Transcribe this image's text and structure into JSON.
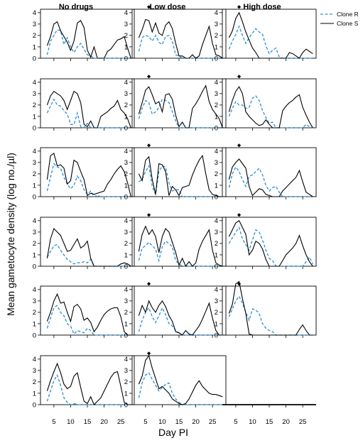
{
  "chart_data": {
    "type": "line",
    "ylabel": "Mean gametocyte density (log no./µl)",
    "xlabel": "Day PI",
    "columns": [
      "No drugs",
      "Low dose",
      "High dose"
    ],
    "xlim": [
      1,
      29
    ],
    "ylim": [
      0,
      4.3
    ],
    "x_ticks": [
      5,
      10,
      15,
      20,
      25
    ],
    "y_ticks": [
      0,
      1,
      2,
      3,
      4
    ],
    "legend": {
      "position": "top-right",
      "entries": [
        {
          "name": "Clone R",
          "color": "#2a8fd6",
          "dash": "dashed"
        },
        {
          "name": "Clone S",
          "color": "#000000",
          "dash": "solid"
        }
      ]
    },
    "marker": {
      "symbol": "diamond",
      "x": 6,
      "y": 4.5
    },
    "x": [
      3,
      4,
      5,
      6,
      7,
      8,
      9,
      10,
      11,
      12,
      13,
      14,
      15,
      16,
      17,
      18,
      19,
      20,
      21,
      22,
      23,
      24,
      25,
      26,
      27,
      28
    ],
    "panels": [
      {
        "row": 1,
        "col": "No drugs",
        "marker": false,
        "R": [
          0.3,
          1.5,
          2.0,
          2.5,
          2.4,
          1.2,
          1.8,
          1.0,
          0.5,
          1.0,
          1.3,
          0.8,
          0.3,
          0.2,
          0,
          0,
          0,
          0,
          0,
          0,
          0,
          0,
          0,
          0,
          0,
          0
        ],
        "S": [
          1.1,
          1.9,
          3.0,
          3.2,
          2.4,
          1.9,
          1.4,
          0.7,
          1.5,
          3.1,
          3.3,
          2.7,
          0.7,
          0.1,
          1.0,
          0,
          0,
          0,
          0.6,
          0.8,
          1.2,
          1.6,
          1.7,
          1.9,
          0.9,
          0
        ]
      },
      {
        "row": 1,
        "col": "Low dose",
        "marker": true,
        "R": [
          0.6,
          1.8,
          2.0,
          1.9,
          1.5,
          2.0,
          1.4,
          1.2,
          1.9,
          2.0,
          1.5,
          0.3,
          0.2,
          0,
          0,
          0,
          0,
          0,
          0,
          0,
          0,
          0,
          0,
          0,
          0,
          0
        ],
        "S": [
          1.8,
          2.5,
          3.4,
          3.3,
          2.3,
          3.1,
          2.2,
          2.0,
          2.9,
          3.2,
          2.6,
          1.3,
          0.2,
          0.2,
          0,
          0,
          0.3,
          0,
          0.2,
          1.2,
          2.0,
          2.8,
          1.3,
          0.3,
          0.2,
          0
        ]
      },
      {
        "row": 1,
        "col": "High dose",
        "marker": true,
        "R": [
          0.8,
          1.5,
          2.1,
          2.8,
          2.0,
          1.3,
          1.8,
          2.2,
          2.6,
          2.3,
          2.1,
          1.1,
          0.4,
          0.7,
          0.9,
          0.1,
          0,
          0,
          0,
          0,
          0,
          0,
          0,
          0,
          0,
          0
        ],
        "S": [
          1.8,
          2.4,
          3.5,
          4.0,
          3.2,
          2.3,
          1.6,
          0.9,
          0.5,
          0,
          0,
          0,
          0,
          0,
          0,
          0,
          0,
          0,
          0.5,
          0.4,
          0.2,
          0,
          0.5,
          0.8,
          0.6,
          0.4
        ]
      },
      {
        "row": 2,
        "col": "No drugs",
        "marker": false,
        "R": [
          1.3,
          1.9,
          2.5,
          2.0,
          1.9,
          1.5,
          1.2,
          0.3,
          0.3,
          1.3,
          0.1,
          0,
          0.4,
          0,
          0,
          0,
          0,
          0,
          0,
          0,
          0,
          0,
          0,
          0,
          0,
          0
        ],
        "S": [
          2.0,
          2.8,
          3.2,
          3.0,
          2.8,
          2.4,
          1.6,
          2.4,
          3.2,
          3.0,
          2.2,
          0.3,
          0.1,
          0.6,
          0,
          0,
          1.0,
          1.2,
          1.4,
          1.7,
          1.9,
          2.4,
          1.6,
          1.3,
          0.8,
          0
        ]
      },
      {
        "row": 2,
        "col": "Low dose",
        "marker": true,
        "R": [
          0.8,
          1.7,
          2.4,
          2.2,
          1.2,
          1.4,
          1.8,
          2.5,
          2.4,
          2.2,
          1.4,
          0.6,
          0,
          0,
          0,
          0,
          0,
          0,
          0,
          0,
          0,
          0,
          0,
          0,
          0,
          0
        ],
        "S": [
          1.2,
          2.2,
          3.3,
          3.6,
          2.9,
          2.1,
          2.3,
          1.4,
          2.9,
          3.0,
          2.5,
          1.1,
          0.1,
          0.5,
          0,
          0,
          1.7,
          2.1,
          2.6,
          3.2,
          3.7,
          2.3,
          1.6,
          1.2,
          0.8,
          0
        ]
      },
      {
        "row": 2,
        "col": "High dose",
        "marker": true,
        "R": [
          1.0,
          1.7,
          2.3,
          2.0,
          2.0,
          1.7,
          1.8,
          2.6,
          2.8,
          2.4,
          1.5,
          0.9,
          0.4,
          0.5,
          0,
          0,
          0,
          0,
          0,
          0,
          0,
          0,
          0,
          0.3,
          0.1,
          0
        ],
        "S": [
          1.4,
          2.4,
          3.2,
          3.6,
          3.0,
          1.4,
          1.0,
          0.7,
          0.4,
          0.2,
          0.3,
          0.7,
          0.3,
          0,
          0,
          0,
          1.5,
          1.9,
          2.2,
          2.4,
          2.7,
          2.9,
          1.8,
          1.1,
          0.5,
          0
        ]
      },
      {
        "row": 3,
        "col": "No drugs",
        "marker": false,
        "R": [
          0.5,
          1.7,
          2.9,
          2.6,
          2.5,
          1.7,
          1.1,
          0.7,
          1.0,
          1.8,
          1.4,
          0.6,
          0.2,
          0.5,
          0,
          0.1,
          0,
          0,
          0,
          0,
          0,
          0,
          0,
          0,
          0,
          0
        ],
        "S": [
          1.5,
          3.6,
          3.8,
          2.7,
          2.8,
          2.5,
          1.1,
          1.4,
          3.2,
          3.0,
          2.2,
          1.5,
          0.1,
          0.3,
          0.2,
          0.3,
          0.4,
          0.5,
          1.1,
          1.5,
          2.0,
          2.4,
          2.7,
          2.2,
          1.2,
          0
        ]
      },
      {
        "row": 3,
        "col": "Low dose",
        "marker": true,
        "R": [
          1.3,
          1.5,
          2.2,
          2.7,
          0.9,
          0.2,
          2.2,
          2.7,
          2.6,
          1.2,
          0.5,
          0.6,
          0.6,
          0,
          0,
          0,
          0,
          0,
          0,
          0,
          0,
          0,
          0,
          0,
          0,
          0
        ],
        "S": [
          2.0,
          1.4,
          3.2,
          3.5,
          1.5,
          0.2,
          2.9,
          2.8,
          2.2,
          0.1,
          0.9,
          0.6,
          0.1,
          0.8,
          0.9,
          1.0,
          1.9,
          2.6,
          3.2,
          3.6,
          2.0,
          0.6,
          0.2,
          0.1,
          0,
          0
        ]
      },
      {
        "row": 3,
        "col": "High dose",
        "marker": true,
        "R": [
          0.8,
          2.0,
          2.6,
          2.2,
          1.5,
          0.9,
          1.8,
          1.9,
          2.2,
          2.5,
          1.9,
          1.0,
          0.5,
          0.8,
          0.9,
          0.4,
          0,
          0,
          0,
          0,
          0,
          0,
          0,
          0,
          0,
          0
        ],
        "S": [
          1.5,
          2.6,
          3.0,
          3.3,
          2.9,
          2.5,
          0.9,
          0.1,
          0.4,
          0.7,
          0.6,
          0.2,
          0.1,
          0,
          0,
          0,
          0.5,
          0.8,
          1.1,
          1.4,
          1.7,
          2.3,
          1.3,
          0.4,
          0.2,
          0
        ]
      },
      {
        "row": 4,
        "col": "No drugs",
        "marker": false,
        "R": [
          0.8,
          1.3,
          1.8,
          1.9,
          1.4,
          1.0,
          0.6,
          0.4,
          0.2,
          0.3,
          0.3,
          0.4,
          0.3,
          0.6,
          0,
          0,
          0,
          0,
          0,
          0,
          0,
          0,
          0,
          0,
          0,
          0
        ],
        "S": [
          0.7,
          2.4,
          3.3,
          3.0,
          2.7,
          2.0,
          1.3,
          1.4,
          1.9,
          2.4,
          1.6,
          1.8,
          2.2,
          0.7,
          0,
          0,
          0,
          0,
          0,
          0,
          0,
          0,
          0.2,
          0.3,
          0.2,
          0
        ]
      },
      {
        "row": 4,
        "col": "Low dose",
        "marker": true,
        "R": [
          0.5,
          1.6,
          1.8,
          2.1,
          1.8,
          1.5,
          0.5,
          1.7,
          2.2,
          2.0,
          1.7,
          0.5,
          0.2,
          0,
          0,
          0,
          0,
          0,
          0,
          0,
          0,
          0,
          0,
          0,
          0,
          0
        ],
        "S": [
          1.3,
          2.8,
          3.5,
          2.8,
          3.2,
          2.6,
          1.2,
          2.6,
          3.3,
          3.0,
          2.1,
          1.2,
          0.1,
          0.7,
          0,
          0.4,
          0,
          0.3,
          1.5,
          2.2,
          2.7,
          3.2,
          1.4,
          0.3,
          0.1,
          0
        ]
      },
      {
        "row": 4,
        "col": "High dose",
        "marker": true,
        "R": [
          2.0,
          2.5,
          3.0,
          3.4,
          2.4,
          1.9,
          1.4,
          2.3,
          3.2,
          3.0,
          2.3,
          1.4,
          0.7,
          0.5,
          0,
          0,
          0,
          0,
          0,
          0,
          0,
          0,
          0,
          0.4,
          0.8,
          0.2
        ],
        "S": [
          2.6,
          3.2,
          3.8,
          4.0,
          3.4,
          2.8,
          1.0,
          1.4,
          2.2,
          2.0,
          1.5,
          0.6,
          0,
          0,
          0,
          0,
          0.5,
          1.0,
          1.3,
          1.6,
          2.0,
          2.7,
          1.8,
          1.0,
          0.4,
          0
        ]
      },
      {
        "row": 5,
        "col": "No drugs",
        "marker": false,
        "R": [
          0.6,
          1.5,
          2.4,
          2.6,
          2.0,
          1.7,
          1.0,
          0.8,
          0.1,
          0.4,
          0.3,
          0.2,
          0.6,
          0.4,
          0,
          0,
          0,
          0,
          0,
          0,
          0,
          0,
          0,
          0,
          0,
          0
        ],
        "S": [
          1.2,
          2.0,
          3.0,
          3.6,
          2.8,
          2.9,
          2.0,
          1.2,
          2.5,
          2.7,
          2.3,
          1.3,
          1.5,
          1.1,
          0.3,
          0.7,
          1.3,
          1.8,
          2.1,
          2.3,
          2.4,
          2.4,
          1.6,
          0.3,
          0,
          0
        ]
      },
      {
        "row": 5,
        "col": "Low dose",
        "marker": true,
        "R": [
          0.3,
          1.3,
          2.0,
          2.4,
          1.6,
          1.1,
          1.7,
          2.4,
          1.8,
          1.0,
          0.8,
          0.4,
          0.2,
          0,
          0,
          0,
          0,
          0,
          0,
          0,
          0,
          0,
          0,
          0,
          0,
          0
        ],
        "S": [
          1.7,
          2.6,
          2.0,
          3.0,
          2.4,
          2.0,
          2.6,
          3.0,
          2.5,
          1.7,
          1.2,
          0.3,
          0.2,
          0,
          0.4,
          0.1,
          0,
          0.4,
          0.8,
          1.4,
          2.1,
          2.8,
          1.5,
          0.4,
          0,
          0
        ]
      },
      {
        "row": 5,
        "col": "High dose",
        "marker": true,
        "R": [
          1.6,
          2.3,
          3.0,
          3.4,
          2.8,
          2.0,
          1.3,
          2.3,
          2.2,
          1.9,
          1.0,
          0.6,
          0.4,
          0.3,
          0,
          0,
          0,
          0,
          0,
          0,
          0,
          0,
          0,
          0,
          0,
          0
        ],
        "S": [
          1.9,
          2.7,
          4.5,
          4.7,
          3.2,
          1.9,
          0.1,
          0,
          0,
          0,
          0,
          0,
          0,
          0,
          0,
          0,
          0,
          0,
          0,
          0,
          0,
          0.5,
          0.9,
          0.4,
          0,
          0
        ]
      },
      {
        "row": 6,
        "col": "No drugs",
        "marker": false,
        "R": [
          0.3,
          1.2,
          2.1,
          2.6,
          1.7,
          0.6,
          0.2,
          0,
          0.1,
          0,
          0,
          0,
          0,
          0,
          0,
          0,
          0,
          0,
          0,
          0,
          0,
          0,
          0,
          0,
          0,
          0
        ],
        "S": [
          1.2,
          2.1,
          2.9,
          3.6,
          2.8,
          1.8,
          1.4,
          1.6,
          2.5,
          2.8,
          1.5,
          0.3,
          0.1,
          0.7,
          0,
          0.3,
          0.6,
          1.2,
          1.8,
          2.4,
          2.8,
          2.9,
          1.6,
          0.2,
          0,
          0
        ]
      },
      {
        "row": 6,
        "col": "Low dose",
        "marker": true,
        "R": [
          0.6,
          1.9,
          2.6,
          2.8,
          2.2,
          1.7,
          1.2,
          1.5,
          1.8,
          1.9,
          1.0,
          0.5,
          0.2,
          0,
          0,
          0,
          0,
          0,
          0,
          0,
          0,
          0,
          0,
          0,
          0,
          0
        ],
        "S": [
          1.8,
          2.5,
          3.9,
          4.3,
          3.2,
          2.3,
          1.4,
          1.6,
          1.3,
          1.0,
          0.5,
          0.3,
          0.1,
          0,
          0.1,
          0.5,
          1.1,
          1.7,
          2.1,
          1.6,
          1.3,
          1.0,
          0.9,
          0.9,
          0.8,
          0.7
        ]
      }
    ]
  }
}
